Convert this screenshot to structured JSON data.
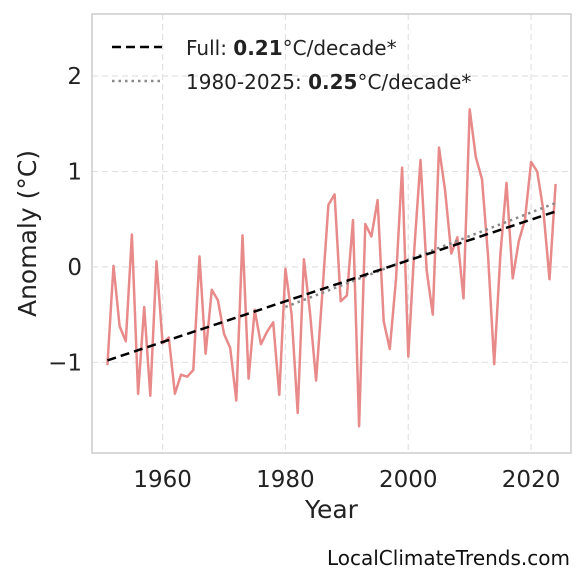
{
  "chart_data": {
    "type": "line",
    "xlabel": "Year",
    "ylabel": "Anomaly (°C)",
    "xlim": [
      1948.5,
      2026.5
    ],
    "ylim": [
      -1.95,
      2.65
    ],
    "xticks": [
      1960,
      1980,
      2000,
      2020
    ],
    "xtick_labels": [
      "1960",
      "1980",
      "2000",
      "2020"
    ],
    "yticks": [
      -1,
      0,
      1,
      2
    ],
    "ytick_labels": [
      "−1",
      "0",
      "1",
      "2"
    ],
    "grid": true,
    "legend_position": "top-left",
    "series": [
      {
        "style": "solid",
        "color": "#e88a8a",
        "x": [
          1951,
          1952,
          1953,
          1954,
          1955,
          1956,
          1957,
          1958,
          1959,
          1960,
          1961,
          1962,
          1963,
          1964,
          1965,
          1966,
          1967,
          1968,
          1969,
          1970,
          1971,
          1972,
          1973,
          1974,
          1975,
          1976,
          1977,
          1978,
          1979,
          1980,
          1981,
          1982,
          1983,
          1984,
          1985,
          1986,
          1987,
          1988,
          1989,
          1990,
          1991,
          1992,
          1993,
          1994,
          1995,
          1996,
          1997,
          1998,
          1999,
          2000,
          2001,
          2002,
          2003,
          2004,
          2005,
          2006,
          2007,
          2008,
          2009,
          2010,
          2011,
          2012,
          2013,
          2014,
          2015,
          2016,
          2017,
          2018,
          2019,
          2020,
          2021,
          2022,
          2023,
          2024
        ],
        "y": [
          -1.03,
          0.01,
          -0.62,
          -0.78,
          0.34,
          -1.33,
          -0.42,
          -1.35,
          0.06,
          -0.8,
          -0.74,
          -1.33,
          -1.13,
          -1.15,
          -1.08,
          0.11,
          -0.91,
          -0.24,
          -0.35,
          -0.7,
          -0.85,
          -1.4,
          0.33,
          -1.17,
          -0.45,
          -0.81,
          -0.68,
          -0.58,
          -1.34,
          -0.02,
          -0.5,
          -1.53,
          0.08,
          -0.48,
          -1.19,
          -0.28,
          0.65,
          0.76,
          -0.36,
          -0.3,
          0.49,
          -1.67,
          0.45,
          0.32,
          0.7,
          -0.57,
          -0.86,
          -0.13,
          1.04,
          -0.94,
          0.2,
          1.12,
          -0.04,
          -0.5,
          1.25,
          0.8,
          0.14,
          0.31,
          -0.33,
          1.65,
          1.15,
          0.92,
          0.11,
          -1.02,
          0.13,
          0.88,
          -0.12,
          0.27,
          0.49,
          1.1,
          1.0,
          0.59,
          -0.13,
          0.87
        ]
      },
      {
        "name": "Full: 0.21°C/decade*",
        "legend_prefix": "Full: ",
        "legend_bold": "0.21",
        "legend_suffix": "°C/decade*",
        "style": "dashed",
        "color": "#000000",
        "x": [
          1951,
          2024
        ],
        "y": [
          -0.98,
          0.58
        ]
      },
      {
        "name": "1980-2025: 0.25°C/decade*",
        "legend_prefix": "1980-2025: ",
        "legend_bold": "0.25",
        "legend_suffix": "°C/decade*",
        "style": "dotted",
        "color": "#888888",
        "x": [
          1980,
          2024
        ],
        "y": [
          -0.42,
          0.67
        ]
      }
    ]
  },
  "footer": {
    "credit": "LocalClimateTrends.com"
  }
}
